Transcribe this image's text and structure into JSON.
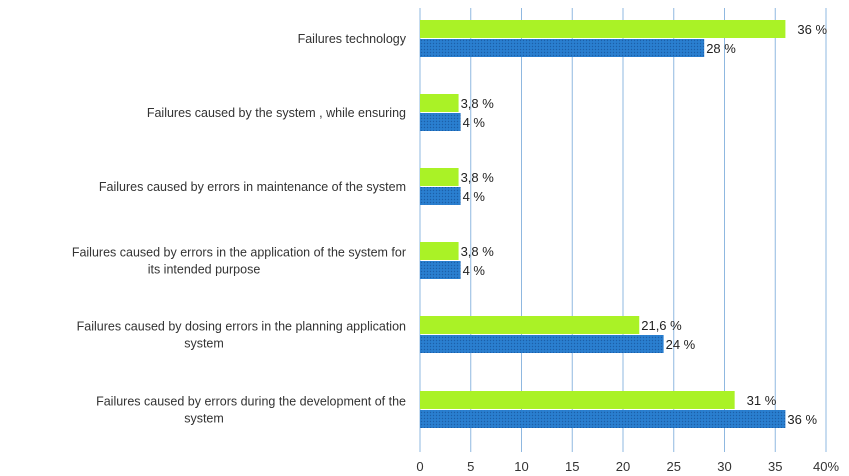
{
  "chart_data": {
    "type": "bar",
    "orientation": "horizontal",
    "title": "",
    "xlabel": "",
    "ylabel": "",
    "x_axis_unit": "%",
    "xlim": [
      0,
      40
    ],
    "x_ticks": [
      0,
      5,
      10,
      15,
      20,
      25,
      30,
      35,
      40
    ],
    "grid": true,
    "legend": "none",
    "categories": [
      [
        "Failures technology"
      ],
      [
        "Failures caused by the system , while ensuring"
      ],
      [
        "Failures caused by errors in maintenance of the system"
      ],
      [
        "Failures caused by errors in the application of the system for",
        "its intended purpose"
      ],
      [
        "Failures caused by dosing errors in the planning application",
        "system"
      ],
      [
        "Failures caused by errors during the development of the",
        "system"
      ]
    ],
    "series": [
      {
        "color": "#aaf226",
        "values": [
          36,
          3.8,
          3.8,
          3.8,
          21.6,
          31
        ],
        "labels": [
          "36 %",
          "3,8 %",
          "3,8 %",
          "3,8 %",
          "21,6 %",
          "31 %"
        ]
      },
      {
        "color": "#2a7fd0",
        "values": [
          28,
          4,
          4,
          4,
          24,
          36
        ],
        "labels": [
          "28 %",
          "4 %",
          "4 %",
          "4 %",
          "24 %",
          "36 %"
        ]
      }
    ]
  }
}
